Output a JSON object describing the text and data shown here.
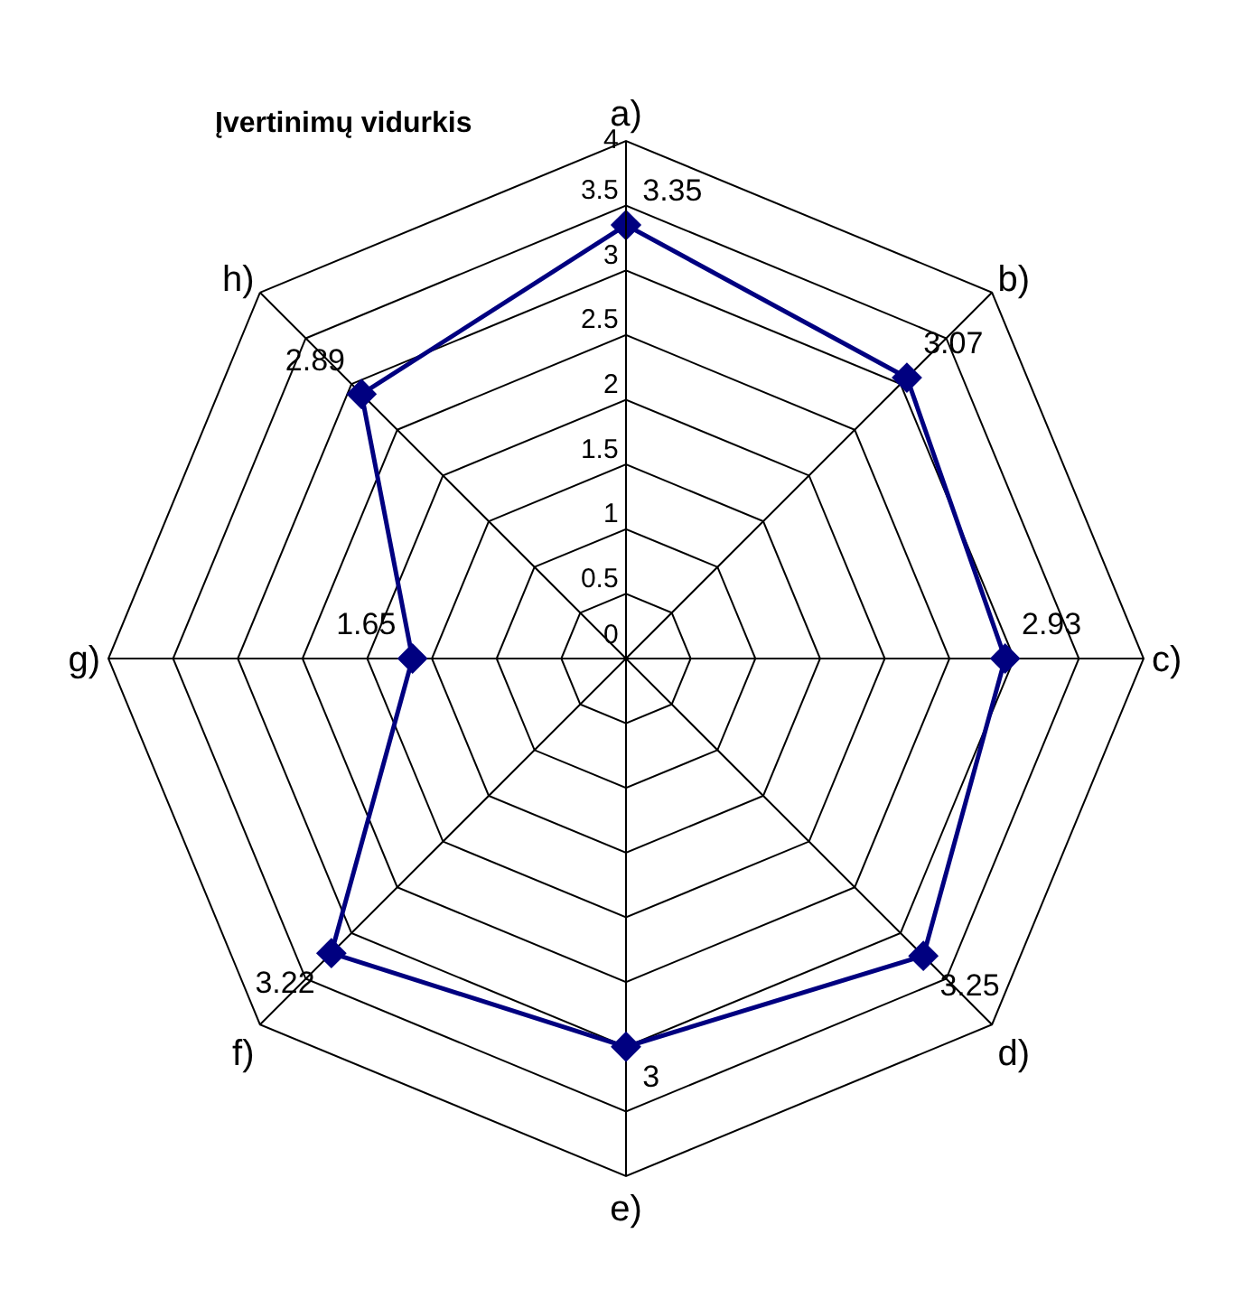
{
  "chart_data": {
    "type": "radar",
    "ylabel": "Įvertinimų vidurkis",
    "categories": [
      "a)",
      "b)",
      "c)",
      "d)",
      "e)",
      "f)",
      "g)",
      "h)"
    ],
    "series": [
      {
        "color": "#000080",
        "values": [
          3.35,
          3.07,
          2.93,
          3.25,
          3,
          3.22,
          1.65,
          2.89
        ]
      }
    ],
    "ylim": [
      0,
      4
    ],
    "yticks": [
      0,
      0.5,
      1,
      1.5,
      2,
      2.5,
      3,
      3.5,
      4
    ],
    "data_labels": true,
    "marker": "diamond",
    "line_style": "solid",
    "grid": true
  }
}
